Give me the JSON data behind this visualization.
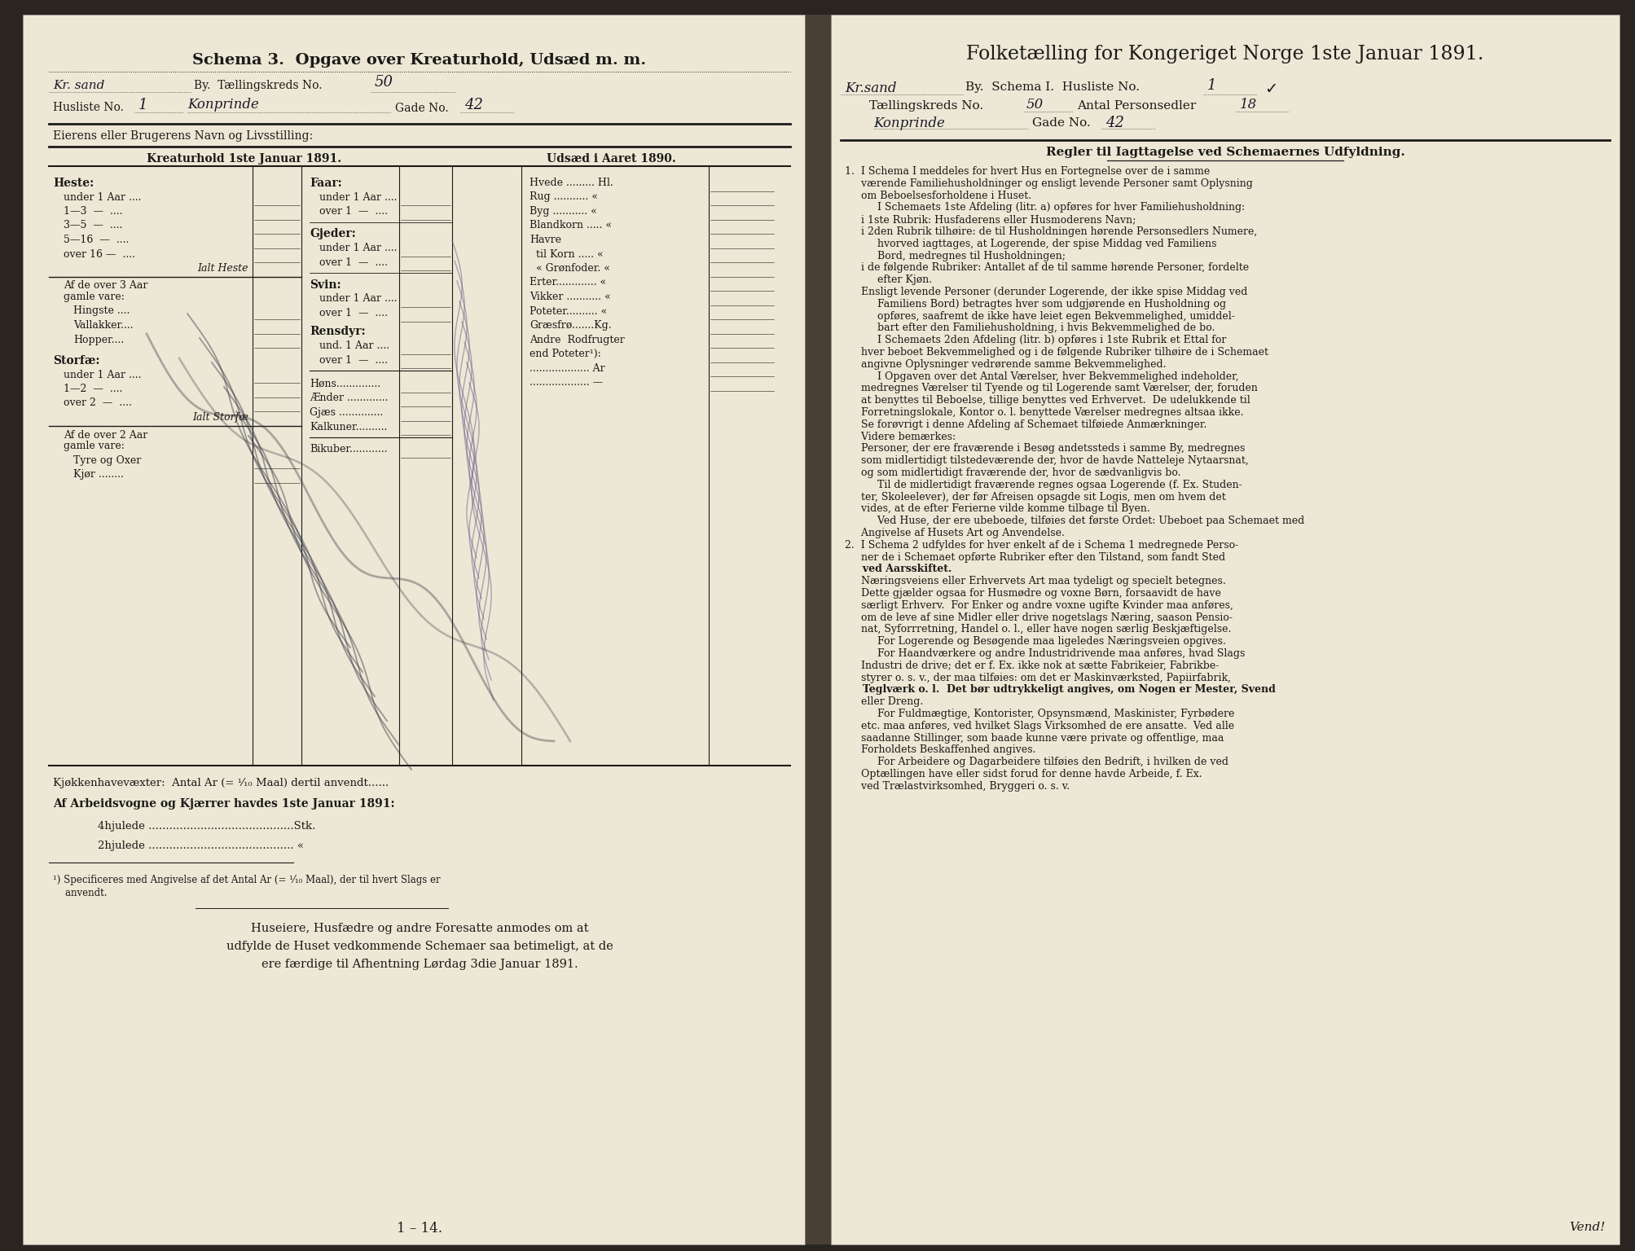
{
  "paper_bg": "#ede8d5",
  "dark_bg": "#2a2520",
  "text_color": "#1a1a18",
  "handwriting_color": "#1a1a2a",
  "hw_purple": "#6a5a8a",
  "left_page": {
    "title": "Schema 3.  Opgave over Kreaturhold, Udsæd m. m.",
    "hw_city": "Kr. sand",
    "talling_label": "By.  Tællingskreds No.",
    "talling_no": "50",
    "husliste_label": "Husliste No.",
    "husliste_no": "1",
    "konprinde": "Konprinde",
    "gade_label": "Gade No.",
    "gade_no": "42",
    "owner_label": "Eierens eller Brugerens Navn og Livsstilling:",
    "col1_header": "Kreaturhold 1ste Januar 1891.",
    "col2_header": "Udsæd i Aaret 1890.",
    "heste_section": "Heste:",
    "heste_rows": [
      "under 1 Aar ....",
      "1—3  —  ....",
      "3—5  —  ....",
      "5—16  —  ....",
      "over 16 —  ...."
    ],
    "ialt_heste": "Ialt Heste",
    "over3aar": "Af de over 3 Aar",
    "gammlevare": "gamle vare:",
    "hingste": "Hingste ....",
    "vallakker": "Vallakker....",
    "hopper": "Hopper....",
    "storfae_section": "Storfæ:",
    "storfae_rows": [
      "under 1 Aar ....",
      "1—2  —  ....",
      "over 2  —  ...."
    ],
    "ialt_storfae": "Ialt Storfæ",
    "over2aar": "Af de over 2 Aar",
    "gammlevare2": "gamle vare:",
    "tyre": "Tyre og Oxer",
    "kjoer": "Kjør ........",
    "faar_section": "Faar:",
    "faar_rows": [
      "under 1 Aar ....",
      "over 1  —  ...."
    ],
    "gjeder_section": "Gjeder:",
    "gjeder_rows": [
      "under 1 Aar ....",
      "over 1  —  ...."
    ],
    "svin_section": "Svin:",
    "svin_rows": [
      "under 1 Aar ....",
      "over 1  —  ...."
    ],
    "rensdyr_section": "Rensdyr:",
    "rensdyr_rows": [
      "und. 1 Aar ....",
      "over 1  —  ...."
    ],
    "hoens": "Høns..............",
    "aender": "Ænder .............",
    "gjaes": "Gjæs ..............",
    "kalkuner": "Kalkuner..........",
    "bikuber": "Bikuber............",
    "udsaed_rows": [
      "Hvede ......... Hl.",
      "Rug ........... «",
      "Byg ........... «",
      "Blandkorn ..... «",
      "Havre",
      "  til Korn ..... «",
      "  « Grønfoder. «",
      "Erter............. «",
      "Vikker ........... «",
      "Poteter.......... «",
      "Græsfrø.......Kg.",
      "Andre  Rodfrugter",
      "end Poteter¹):",
      "................... Ar",
      "................... —"
    ],
    "kjoekken": "Kjøkkenhavevæxter:  Antal Ar (= ¹⁄₁₀ Maal) dertil anvendt......",
    "arbeid_header": "Af Arbeidsvogne og Kjærrer havdes 1ste Januar 1891:",
    "arbeid_rows": [
      "4hjulede ..........................................Stk.",
      "2hjulede .......................................... «"
    ],
    "footnote1": "¹) Specificeres med Angivelse af det Antal Ar (= ¹⁄₁₀ Maal), der til hvert Slags er",
    "footnote2": "    anvendt.",
    "closing1": "Huseiere, Husfædre og andre Foresatte anmodes om at",
    "closing2": "udfylde de Huset vedkommende Schemaer saa betimeligt, at de",
    "closing3": "ere færdige til Afhentning Lørdag 3die Januar 1891.",
    "page_num": "1 – 14."
  },
  "right_page": {
    "title": "Folketælling for Kongeriget Norge 1ste Januar 1891.",
    "hw_city": "Kr.sand",
    "by_label": "By.  Schema I.  Husliste No.",
    "husliste_no": "1",
    "talling_label": "Tællingskreds No.",
    "talling_no": "50",
    "personsedler_label": "Antal Personsedler",
    "personsedler_no": "18",
    "konprinde": "Konprinde",
    "gade_label": "Gade No.",
    "gade_no": "42",
    "section_title": "Regler til Iagttagelse ved Schemaernes Udfyldning.",
    "rule_lines": [
      "1.  I Schema I meddeles for hvert Hus en Fortegnelse over de i samme",
      "     værende Familiehusholdninger og ensligt levende Personer samt Oplysning",
      "     om Beboelsesforholdene i Huset.",
      "          I Schemaets 1ste Afdeling (litr. a) opføres for hver Familiehusholdning:",
      "     i 1ste Rubrik: Husfaderens eller Husmoderens Navn;",
      "     i 2den Rubrik tilhøire: de til Husholdningen hørende Personsedlers Numere,",
      "          hvorved iagttages, at Logerende, der spise Middag ved Familiens",
      "          Bord, medregnes til Husholdningen;",
      "     i de følgende Rubriker: Antallet af de til samme hørende Personer, fordelte",
      "          efter Kjøn.",
      "     Ensligt levende Personer (derunder Logerende, der ikke spise Middag ved",
      "          Familiens Bord) betragtes hver som udgjørende en Husholdning og",
      "          opføres, saafremt de ikke have leiet egen Bekvemmelighed, umiddel-",
      "          bart efter den Familiehusholdning, i hvis Bekvemmelighed de bo.",
      "          I Schemaets 2den Afdeling (litr. b) opføres i 1ste Rubrik et Ettal for",
      "     hver beboet Bekvemmelighed og i de følgende Rubriker tilhøire de i Schemaet",
      "     angivne Oplysninger vedrørende samme Bekvemmelighed.",
      "          I Opgaven over det Antal Værelser, hver Bekvemmelighed indeholder,",
      "     medregnes Værelser til Tyende og til Logerende samt Værelser, der, foruden",
      "     at benyttes til Beboelse, tillige benyttes ved Erhvervet.  De udelukkende til",
      "     Forretningslokale, Kontor o. l. benyttede Værelser medregnes altsaa ikke.",
      "     Se forøvrigt i denne Afdeling af Schemaet tilføiede Anmærkninger.",
      "     Videre bemærkes:",
      "     Personer, der ere fraværende i Besøg andetssteds i samme By, medregnes",
      "     som midlertidigt tilstedeværende der, hvor de havde Natteleje Nytaarsnat,",
      "     og som midlertidigt fraværende der, hvor de sædvanligvis bo.",
      "          Til de midlertidigt fraværende regnes ogsaa Logerende (f. Ex. Studen-",
      "     ter, Skoleelever), der før Afreisen opsagde sit Logis, men om hvem det",
      "     vides, at de efter Ferierne vilde komme tilbage til Byen.",
      "          Ved Huse, der ere ubeboede, tilføies det første Ordet: Ubeboet paa Schemaet med",
      "     Angivelse af Husets Art og Anvendelse.",
      "2.  I Schema 2 udfyldes for hver enkelt af de i Schema 1 medregnede Perso-",
      "     ner de i Schemaet opførte Rubriker efter den Tilstand, som fandt Sted",
      "     ved Aarsskiftet.",
      "     Næringsveiens eller Erhvervets Art maa tydeligt og specielt betegnes.",
      "     Dette gjælder ogsaa for Husmødre og voxne Børn, forsaavidt de have",
      "     særligt Erhverv.  For Enker og andre voxne ugifte Kvinder maa anføres,",
      "     om de leve af sine Midler eller drive nogetslags Næring, saason Pensio-",
      "     nat, Syforrretning, Handel o. l., eller have nogen særlig Beskjæftigelse.",
      "          For Logerende og Besøgende maa ligeledes Næringsveien opgives.",
      "          For Haandværkere og andre Industridrivende maa anføres, hvad Slags",
      "     Industri de drive; det er f. Ex. ikke nok at sætte Fabrikeier, Fabrikbe-",
      "     styrer o. s. v., der maa tilføies: om det er Maskinværksted, Papiirfabrik,",
      "     Teglværk o. l.  Det bør udtrykkeligt angives, om Nogen er Mester, Svend",
      "     eller Dreng.",
      "          For Fuldmægtige, Kontorister, Opsynsmænd, Maskinister, Fyrbødere",
      "     etc. maa anføres, ved hvilket Slags Virksomhed de ere ansatte.  Ved alle",
      "     saadanne Stillinger, som baade kunne være private og offentlige, maa",
      "     Forholdets Beskaffenhed angives.",
      "          For Arbeidere og Dagarbeidere tilføies den Bedrift, i hvilken de ved",
      "     Optællingen have eller sidst forud for denne havde Arbeide, f. Ex.",
      "     ved Trælastvirksomhed, Bryggeri o. s. v."
    ],
    "bold_lines": [
      33,
      43
    ],
    "vend": "Vend!"
  }
}
